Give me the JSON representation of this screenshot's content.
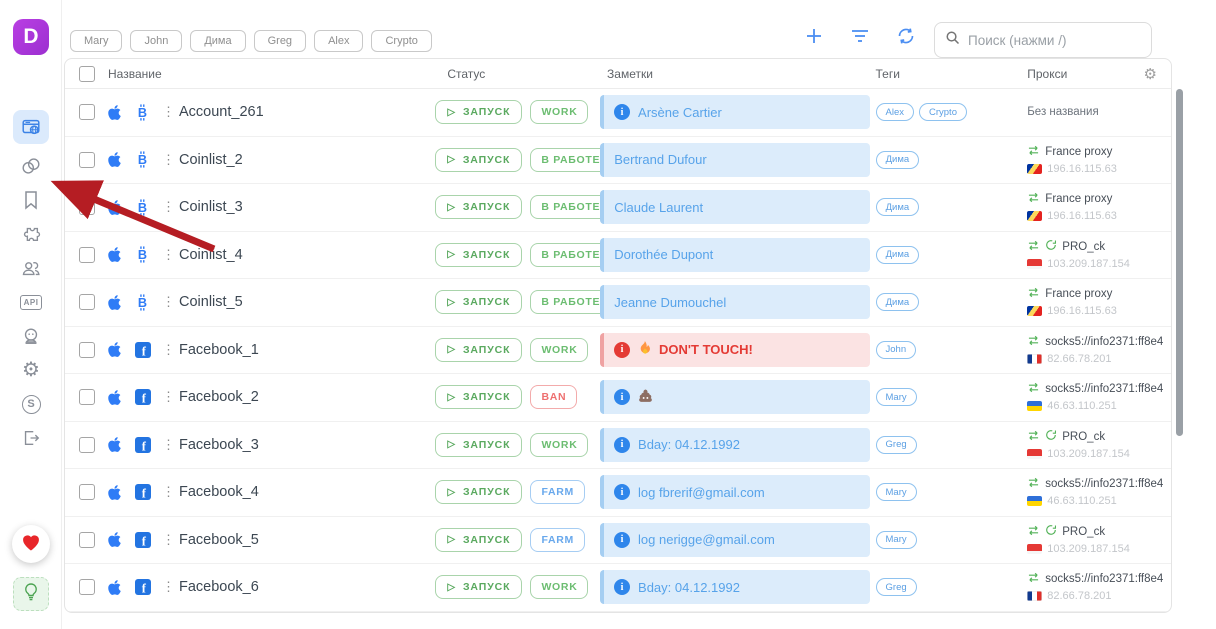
{
  "topbar": {
    "filter_tags": [
      "Mary",
      "John",
      "Дима",
      "Greg",
      "Alex",
      "Crypto"
    ],
    "search_placeholder": "Поиск (нажми /)"
  },
  "sidebar": {
    "api_label": "API",
    "subscription_label": "S",
    "items": [
      "profiles",
      "proxy",
      "bookmarks",
      "extensions",
      "team",
      "api",
      "statuses",
      "settings",
      "subscription",
      "logout",
      "favorites",
      "ideas"
    ]
  },
  "table": {
    "headers": {
      "name": "Название",
      "status": "Статус",
      "notes": "Заметки",
      "tags": "Теги",
      "proxy": "Прокси"
    },
    "launch_label": "ЗАПУСК",
    "rows": [
      {
        "name": "Account_261",
        "platform": "bitcoin",
        "status": "WORK",
        "status_style": "green",
        "note": {
          "style": "blue",
          "info": true,
          "fire": false,
          "poop": false,
          "text": "Arsène Cartier"
        },
        "tags": [
          "Alex",
          "Crypto"
        ],
        "proxy": {
          "style": "empty",
          "name": "Без названия",
          "ip": "",
          "flag": ""
        }
      },
      {
        "name": "Coinlist_2",
        "platform": "bitcoin",
        "status": "В РАБОТЕ",
        "status_style": "green",
        "note": {
          "style": "blue",
          "info": false,
          "fire": false,
          "poop": false,
          "text": "Bertrand Dufour"
        },
        "tags": [
          "Дима"
        ],
        "proxy": {
          "style": "sync",
          "name": "France proxy",
          "ip": "196.16.115.63",
          "flag": "seychelles"
        }
      },
      {
        "name": "Coinlist_3",
        "platform": "bitcoin",
        "status": "В РАБОТЕ",
        "status_style": "green",
        "note": {
          "style": "blue",
          "info": false,
          "fire": false,
          "poop": false,
          "text": "Claude Laurent"
        },
        "tags": [
          "Дима"
        ],
        "proxy": {
          "style": "sync",
          "name": "France proxy",
          "ip": "196.16.115.63",
          "flag": "seychelles"
        }
      },
      {
        "name": "Coinlist_4",
        "platform": "bitcoin",
        "status": "В РАБОТЕ",
        "status_style": "green",
        "note": {
          "style": "blue",
          "info": false,
          "fire": false,
          "poop": false,
          "text": "Dorothée Dupont"
        },
        "tags": [
          "Дима"
        ],
        "proxy": {
          "style": "rotating",
          "name": "PRO_ck",
          "ip": "103.209.187.154",
          "flag": "indonesia"
        }
      },
      {
        "name": "Coinlist_5",
        "platform": "bitcoin",
        "status": "В РАБОТЕ",
        "status_style": "green",
        "note": {
          "style": "blue",
          "info": false,
          "fire": false,
          "poop": false,
          "text": "Jeanne Dumouchel"
        },
        "tags": [
          "Дима"
        ],
        "proxy": {
          "style": "sync",
          "name": "France proxy",
          "ip": "196.16.115.63",
          "flag": "seychelles"
        }
      },
      {
        "name": "Facebook_1",
        "platform": "facebook",
        "status": "WORK",
        "status_style": "green",
        "note": {
          "style": "red",
          "info": true,
          "fire": true,
          "poop": false,
          "text": "DON'T TOUCH!"
        },
        "tags": [
          "John"
        ],
        "proxy": {
          "style": "sync",
          "name": "socks5://info2371:ff8e4",
          "ip": "82.66.78.201",
          "flag": "france"
        }
      },
      {
        "name": "Facebook_2",
        "platform": "facebook",
        "status": "BAN",
        "status_style": "red",
        "note": {
          "style": "blue",
          "info": true,
          "fire": false,
          "poop": true,
          "text": ""
        },
        "tags": [
          "Mary"
        ],
        "proxy": {
          "style": "sync",
          "name": "socks5://info2371:ff8e4",
          "ip": "46.63.110.251",
          "flag": "ukraine"
        }
      },
      {
        "name": "Facebook_3",
        "platform": "facebook",
        "status": "WORK",
        "status_style": "green",
        "note": {
          "style": "blue",
          "info": true,
          "fire": false,
          "poop": false,
          "text": "Bday: 04.12.1992"
        },
        "tags": [
          "Greg"
        ],
        "proxy": {
          "style": "rotating",
          "name": "PRO_ck",
          "ip": "103.209.187.154",
          "flag": "indonesia"
        }
      },
      {
        "name": "Facebook_4",
        "platform": "facebook",
        "status": "FARM",
        "status_style": "blue",
        "note": {
          "style": "blue",
          "info": true,
          "fire": false,
          "poop": false,
          "text": "log fbrerif@gmail.com"
        },
        "tags": [
          "Mary"
        ],
        "proxy": {
          "style": "sync",
          "name": "socks5://info2371:ff8e4",
          "ip": "46.63.110.251",
          "flag": "ukraine"
        }
      },
      {
        "name": "Facebook_5",
        "platform": "facebook",
        "status": "FARM",
        "status_style": "blue",
        "note": {
          "style": "blue",
          "info": true,
          "fire": false,
          "poop": false,
          "text": "log nerigge@gmail.com"
        },
        "tags": [
          "Mary"
        ],
        "proxy": {
          "style": "rotating",
          "name": "PRO_ck",
          "ip": "103.209.187.154",
          "flag": "indonesia"
        }
      },
      {
        "name": "Facebook_6",
        "platform": "facebook",
        "status": "WORK",
        "status_style": "green",
        "note": {
          "style": "blue",
          "info": true,
          "fire": false,
          "poop": false,
          "text": "Bday: 04.12.1992"
        },
        "tags": [
          "Greg"
        ],
        "proxy": {
          "style": "sync",
          "name": "socks5://info2371:ff8e4",
          "ip": "82.66.78.201",
          "flag": "france"
        }
      }
    ]
  }
}
